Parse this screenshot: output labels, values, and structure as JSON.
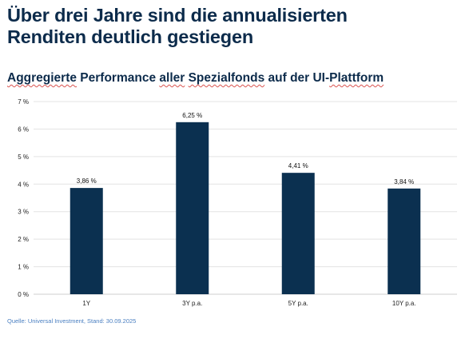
{
  "headline": {
    "line1": "Über drei Jahre sind die annualisierten",
    "line2": "Renditen deutlich gestiegen"
  },
  "subtitle": {
    "part1": "Aggregierte",
    "part2": " Performance ",
    "part3": "aller",
    "part4": " ",
    "part5": "Spezialfonds",
    "part6": " auf der UI-",
    "part7": "Plattform"
  },
  "source": "Quelle: Universal Investment, Stand: 30.09.2025",
  "colors": {
    "bar": "#0b3050",
    "text": "#0c2b4b",
    "grid": "#e3e3e3",
    "source": "#4a7fc1"
  },
  "chart_data": {
    "type": "bar",
    "categories": [
      "1Y",
      "3Y p.a.",
      "5Y p.a.",
      "10Y p.a."
    ],
    "values": [
      3.86,
      6.25,
      4.41,
      3.84
    ],
    "value_labels": [
      "3,86 %",
      "6,25 %",
      "4,41 %",
      "3,84 %"
    ],
    "ylim": [
      0,
      7
    ],
    "yticks": [
      0,
      1,
      2,
      3,
      4,
      5,
      6,
      7
    ],
    "ytick_labels": [
      "0 %",
      "1 %",
      "2 %",
      "3 %",
      "4 %",
      "5 %",
      "6 %",
      "7 %"
    ],
    "grid": true,
    "legend": false,
    "title": "",
    "xlabel": "",
    "ylabel": ""
  }
}
